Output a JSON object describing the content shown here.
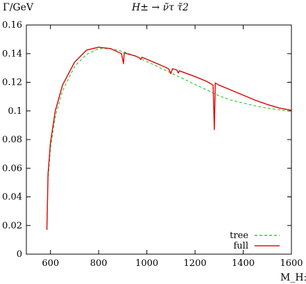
{
  "chart_data": {
    "type": "line",
    "title": "H± → ν̃τ τ̃2",
    "ylabel": "Γ/GeV",
    "xlabel": "M_H±",
    "xlim": [
      500,
      1600
    ],
    "ylim": [
      0,
      0.16
    ],
    "x_ticks": [
      600,
      800,
      1000,
      1200,
      1400,
      1600
    ],
    "y_ticks": [
      0,
      0.02,
      0.04,
      0.06,
      0.08,
      0.1,
      0.12,
      0.14,
      0.16
    ],
    "grid": false,
    "legend_position": "bottom-right",
    "series": [
      {
        "name": "tree",
        "color": "#33cc33",
        "style": "dashed",
        "points": [
          [
            585,
            0.017
          ],
          [
            590,
            0.052
          ],
          [
            600,
            0.074
          ],
          [
            620,
            0.096
          ],
          [
            650,
            0.114
          ],
          [
            700,
            0.131
          ],
          [
            750,
            0.1395
          ],
          [
            800,
            0.1435
          ],
          [
            850,
            0.1435
          ],
          [
            900,
            0.1415
          ],
          [
            950,
            0.1385
          ],
          [
            1000,
            0.1345
          ],
          [
            1050,
            0.1305
          ],
          [
            1100,
            0.1265
          ],
          [
            1150,
            0.1225
          ],
          [
            1200,
            0.1185
          ],
          [
            1250,
            0.1145
          ],
          [
            1300,
            0.1105
          ],
          [
            1350,
            0.1075
          ],
          [
            1400,
            0.1055
          ],
          [
            1450,
            0.1035
          ],
          [
            1500,
            0.102
          ],
          [
            1550,
            0.1008
          ],
          [
            1600,
            0.0995
          ]
        ]
      },
      {
        "name": "full",
        "color": "#dd1111",
        "style": "solid",
        "points": [
          [
            585,
            0.017
          ],
          [
            590,
            0.056
          ],
          [
            600,
            0.078
          ],
          [
            620,
            0.1
          ],
          [
            650,
            0.118
          ],
          [
            700,
            0.134
          ],
          [
            750,
            0.1425
          ],
          [
            800,
            0.1445
          ],
          [
            850,
            0.1435
          ],
          [
            895,
            0.14
          ],
          [
            903,
            0.133
          ],
          [
            906,
            0.1405
          ],
          [
            950,
            0.1385
          ],
          [
            970,
            0.137
          ],
          [
            975,
            0.136
          ],
          [
            980,
            0.1375
          ],
          [
            1050,
            0.1325
          ],
          [
            1090,
            0.1295
          ],
          [
            1100,
            0.126
          ],
          [
            1106,
            0.1295
          ],
          [
            1125,
            0.1285
          ],
          [
            1130,
            0.1265
          ],
          [
            1135,
            0.128
          ],
          [
            1200,
            0.124
          ],
          [
            1250,
            0.1205
          ],
          [
            1275,
            0.118
          ],
          [
            1280,
            0.087
          ],
          [
            1284,
            0.1195
          ],
          [
            1300,
            0.118
          ],
          [
            1350,
            0.1145
          ],
          [
            1400,
            0.111
          ],
          [
            1450,
            0.1075
          ],
          [
            1500,
            0.1045
          ],
          [
            1550,
            0.102
          ],
          [
            1600,
            0.1005
          ]
        ]
      }
    ]
  }
}
